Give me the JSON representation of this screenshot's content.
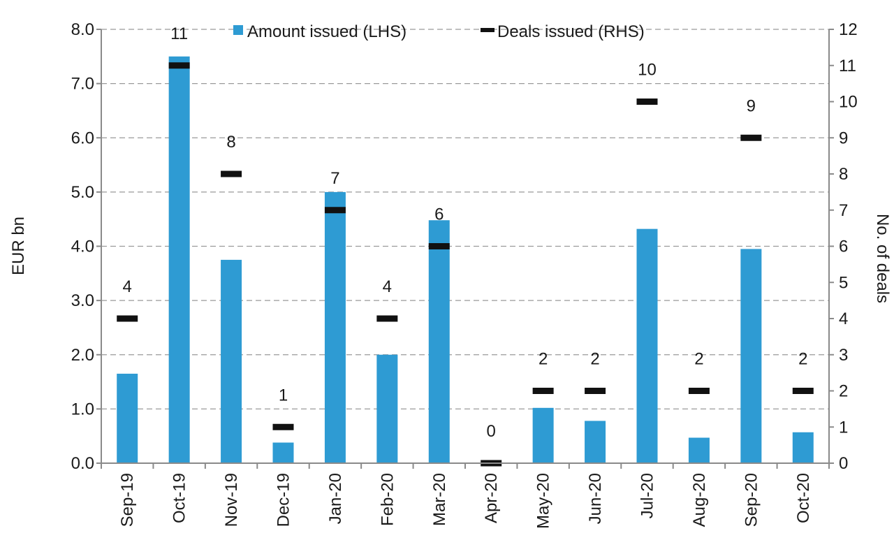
{
  "chart_data": {
    "type": "bar",
    "categories": [
      "Sep-19",
      "Oct-19",
      "Nov-19",
      "Dec-19",
      "Jan-20",
      "Feb-20",
      "Mar-20",
      "Apr-20",
      "May-20",
      "Jun-20",
      "Jul-20",
      "Aug-20",
      "Sep-20",
      "Oct-20"
    ],
    "series": [
      {
        "name": "Amount issued (LHS)",
        "type": "bar",
        "axis": "left",
        "color": "#2e9bd3",
        "values": [
          1.65,
          7.5,
          3.75,
          0.38,
          5.0,
          2.0,
          4.48,
          0.0,
          1.02,
          0.78,
          4.32,
          0.47,
          3.95,
          0.57
        ]
      },
      {
        "name": "Deals issued (RHS)",
        "type": "marker",
        "axis": "right",
        "color": "#111111",
        "values": [
          4,
          11,
          8,
          1,
          7,
          4,
          6,
          0,
          2,
          2,
          10,
          2,
          9,
          2
        ],
        "data_labels": [
          "4",
          "11",
          "8",
          "1",
          "7",
          "4",
          "6",
          "0",
          "2",
          "2",
          "10",
          "2",
          "9",
          "2"
        ]
      }
    ],
    "ylabel": "EUR bn",
    "y2label": "No. of deals",
    "ylim": [
      0,
      8
    ],
    "y2lim": [
      0,
      12
    ],
    "yticks": [
      "0.0",
      "1.0",
      "2.0",
      "3.0",
      "4.0",
      "5.0",
      "6.0",
      "7.0",
      "8.0"
    ],
    "y2ticks": [
      "0",
      "1",
      "2",
      "3",
      "4",
      "5",
      "6",
      "7",
      "8",
      "9",
      "10",
      "11",
      "12"
    ],
    "grid": "horizontal dashed",
    "legend": "top"
  }
}
